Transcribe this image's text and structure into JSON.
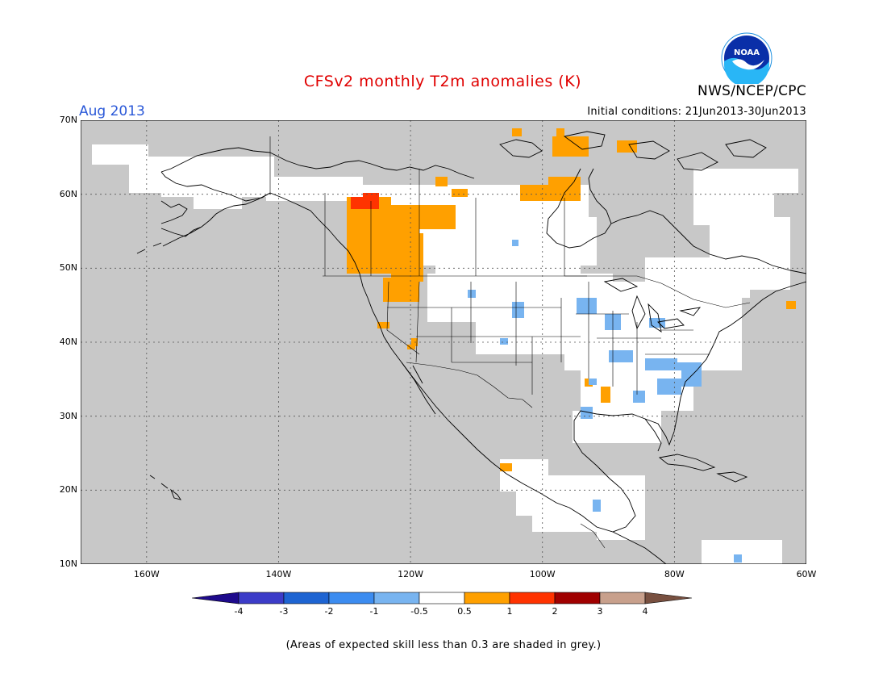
{
  "title": "CFSv2 monthly T2m anomalies (K)",
  "month": "Aug 2013",
  "initial_conditions": "Initial conditions: 21Jun2013-30Jun2013",
  "agency": "NWS/NCEP/CPC",
  "logo_text": "NOAA",
  "footnote": "(Areas of expected skill less than 0.3 are shaded in grey.)",
  "map": {
    "lon_range": [
      -170,
      -60
    ],
    "lat_range": [
      10,
      70
    ],
    "lat_labels": [
      "70N",
      "60N",
      "50N",
      "40N",
      "30N",
      "20N",
      "10N"
    ],
    "lat_values": [
      70,
      60,
      50,
      40,
      30,
      20,
      10
    ],
    "lon_labels": [
      "160W",
      "140W",
      "120W",
      "100W",
      "80W",
      "60W"
    ],
    "lon_values": [
      -160,
      -140,
      -120,
      -100,
      -80,
      -60
    ],
    "grid": true,
    "colors": {
      "grey": "#c8c8c8",
      "white": "#ffffff",
      "orange": "#ffa000",
      "red": "#ff3300",
      "lightblue": "#78b4f0",
      "blue": "#4a96f0"
    }
  },
  "colorbar": {
    "labels": [
      "-4",
      "-3",
      "-2",
      "-1",
      "-0.5",
      "0.5",
      "1",
      "2",
      "3",
      "4"
    ],
    "colors": [
      "#1e0a8c",
      "#3c3cc8",
      "#1e64d2",
      "#3c8cf0",
      "#78b4f0",
      "#ffffff",
      "#ffa000",
      "#ff3300",
      "#a00000",
      "#c8a08c",
      "#785040"
    ]
  }
}
